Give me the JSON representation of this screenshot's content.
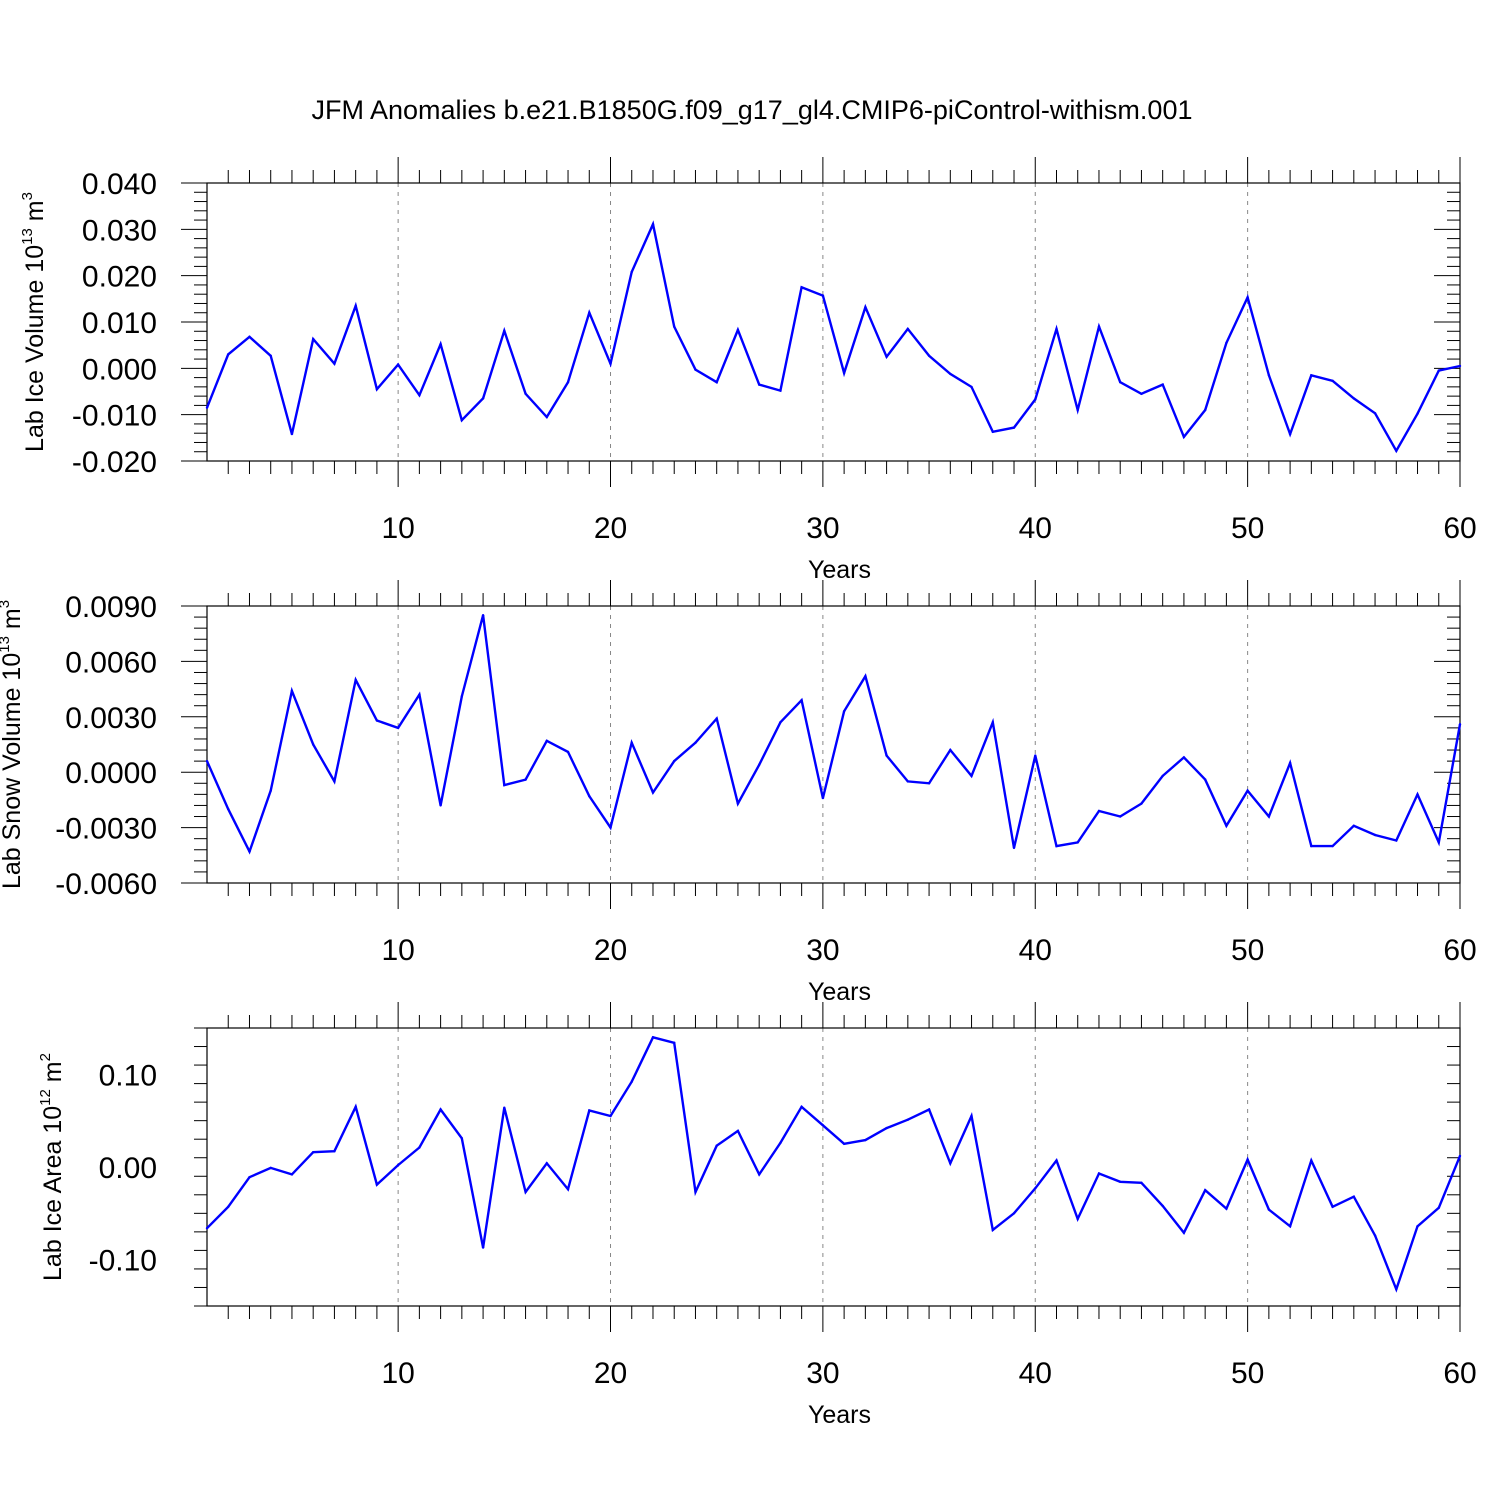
{
  "figure": {
    "title": "JFM Anomalies b.e21.B1850G.f09_g17_gl4.CMIP6-piControl-withism.001"
  },
  "style": {
    "line_color": "#0000ff",
    "axis_color": "#000000",
    "grid_color": "#888888"
  },
  "chart_data": [
    {
      "type": "line",
      "id": "ice-volume",
      "xlabel": "Years",
      "ylabel": "Lab Ice Volume 10",
      "ylabel_exp": "13",
      "ylabel_unit": " m",
      "ylabel_unit_exp": "3",
      "xlim": [
        1,
        60
      ],
      "ylim": [
        -0.02,
        0.04
      ],
      "x_ticks": [
        10,
        20,
        30,
        40,
        50,
        60
      ],
      "y_ticks": [
        -0.02,
        -0.01,
        0.0,
        0.01,
        0.02,
        0.03,
        0.04
      ],
      "y_tick_labels": [
        "-0.020",
        "-0.010",
        "0.000",
        "0.010",
        "0.020",
        "0.030",
        "0.040"
      ],
      "y_minor_step": 0.002,
      "grid": "vertical dashed at major x ticks",
      "series": [
        {
          "x": [
            1,
            2,
            3,
            4,
            5,
            6,
            7,
            8,
            9,
            10,
            11,
            12,
            13,
            14,
            15,
            16,
            17,
            18,
            19,
            20,
            21,
            22,
            23,
            24,
            25,
            26,
            27,
            28,
            29,
            30,
            31,
            32,
            33,
            34,
            35,
            36,
            37,
            38,
            39,
            40,
            41,
            42,
            43,
            44,
            45,
            46,
            47,
            48,
            49,
            50,
            51,
            52,
            53,
            54,
            55,
            56,
            57,
            58,
            59,
            60
          ],
          "values": [
            -0.0085,
            0.003,
            0.0068,
            0.0027,
            -0.0142,
            0.0063,
            0.001,
            0.0135,
            -0.0045,
            0.0008,
            -0.0058,
            0.0052,
            -0.0112,
            -0.0065,
            0.0081,
            -0.0055,
            -0.0105,
            -0.003,
            0.012,
            0.001,
            0.0208,
            0.0311,
            0.009,
            -0.0003,
            -0.003,
            0.0083,
            -0.0035,
            -0.0048,
            0.0175,
            0.0157,
            -0.001,
            0.0132,
            0.0025,
            0.0085,
            0.0027,
            -0.0012,
            -0.004,
            -0.0137,
            -0.0128,
            -0.0067,
            0.0085,
            -0.009,
            0.009,
            -0.003,
            -0.0055,
            -0.0035,
            -0.0148,
            -0.009,
            0.0055,
            0.0153,
            -0.0015,
            -0.0142,
            -0.0015,
            -0.0027,
            -0.0065,
            -0.0097,
            -0.0178,
            -0.0098,
            -0.0005,
            0.0005
          ]
        }
      ]
    },
    {
      "type": "line",
      "id": "snow-volume",
      "xlabel": "Years",
      "ylabel": "Lab Snow Volume 10",
      "ylabel_exp": "13",
      "ylabel_unit": " m",
      "ylabel_unit_exp": "3",
      "xlim": [
        1,
        60
      ],
      "ylim": [
        -0.006,
        0.009
      ],
      "x_ticks": [
        10,
        20,
        30,
        40,
        50,
        60
      ],
      "y_ticks": [
        -0.006,
        -0.003,
        0.0,
        0.003,
        0.006,
        0.009
      ],
      "y_tick_labels": [
        "-0.0060",
        "-0.0030",
        "0.0000",
        "0.0030",
        "0.0060",
        "0.0090"
      ],
      "y_minor_step": 0.0006,
      "grid": "vertical dashed at major x ticks",
      "series": [
        {
          "x": [
            1,
            2,
            3,
            4,
            5,
            6,
            7,
            8,
            9,
            10,
            11,
            12,
            13,
            14,
            15,
            16,
            17,
            18,
            19,
            20,
            21,
            22,
            23,
            24,
            25,
            26,
            27,
            28,
            29,
            30,
            31,
            32,
            33,
            34,
            35,
            36,
            37,
            38,
            39,
            40,
            41,
            42,
            43,
            44,
            45,
            46,
            47,
            48,
            49,
            50,
            51,
            52,
            53,
            54,
            55,
            56,
            57,
            58,
            59,
            60
          ],
          "values": [
            0.0006,
            -0.002,
            -0.0043,
            -0.001,
            0.0044,
            0.0015,
            -0.0005,
            0.005,
            0.0028,
            0.0024,
            0.0042,
            -0.0018,
            0.0041,
            0.0085,
            -0.0007,
            -0.0004,
            0.0017,
            0.0011,
            -0.0013,
            -0.003,
            0.0016,
            -0.0011,
            0.0006,
            0.0016,
            0.0029,
            -0.0017,
            0.0004,
            0.0027,
            0.0039,
            -0.0014,
            0.0033,
            0.0052,
            0.0009,
            -0.0005,
            -0.0006,
            0.0012,
            -0.0002,
            0.0027,
            -0.0041,
            0.0009,
            -0.004,
            -0.0038,
            -0.0021,
            -0.0024,
            -0.0017,
            -0.0002,
            0.0008,
            -0.0004,
            -0.0029,
            -0.001,
            -0.0024,
            0.0005,
            -0.004,
            -0.004,
            -0.0029,
            -0.0034,
            -0.0037,
            -0.0012,
            -0.0038,
            0.0026
          ]
        }
      ]
    },
    {
      "type": "line",
      "id": "ice-area",
      "xlabel": "Years",
      "ylabel": "Lab Ice Area 10",
      "ylabel_exp": "12",
      "ylabel_unit": " m",
      "ylabel_unit_exp": "2",
      "xlim": [
        1,
        60
      ],
      "ylim": [
        -0.15,
        0.15
      ],
      "x_ticks": [
        10,
        20,
        30,
        40,
        50,
        60
      ],
      "y_ticks": [
        -0.1,
        0.0,
        0.1
      ],
      "y_tick_labels": [
        "-0.10",
        "0.00",
        "0.10"
      ],
      "y_minor_step": 0.02,
      "grid": "vertical dashed at major x ticks",
      "series": [
        {
          "x": [
            1,
            2,
            3,
            4,
            5,
            6,
            7,
            8,
            9,
            10,
            11,
            12,
            13,
            14,
            15,
            16,
            17,
            18,
            19,
            20,
            21,
            22,
            23,
            24,
            25,
            26,
            27,
            28,
            29,
            30,
            31,
            32,
            33,
            34,
            35,
            36,
            37,
            38,
            39,
            40,
            41,
            42,
            43,
            44,
            45,
            46,
            47,
            48,
            49,
            50,
            51,
            52,
            53,
            54,
            55,
            56,
            57,
            58,
            59,
            60
          ],
          "values": [
            -0.066,
            -0.043,
            -0.011,
            -0.001,
            -0.008,
            0.016,
            0.017,
            0.065,
            -0.019,
            0.002,
            0.021,
            0.062,
            0.031,
            -0.087,
            0.064,
            -0.027,
            0.004,
            -0.024,
            0.061,
            0.055,
            0.092,
            0.14,
            0.134,
            -0.027,
            0.023,
            0.039,
            -0.008,
            0.026,
            0.065,
            0.045,
            0.025,
            0.029,
            0.042,
            0.051,
            0.062,
            0.004,
            0.055,
            -0.068,
            -0.05,
            -0.023,
            0.007,
            -0.056,
            -0.007,
            -0.016,
            -0.017,
            -0.042,
            -0.071,
            -0.025,
            -0.045,
            0.008,
            -0.046,
            -0.064,
            0.007,
            -0.043,
            -0.032,
            -0.074,
            -0.132,
            -0.064,
            -0.044,
            0.012
          ]
        }
      ]
    }
  ]
}
